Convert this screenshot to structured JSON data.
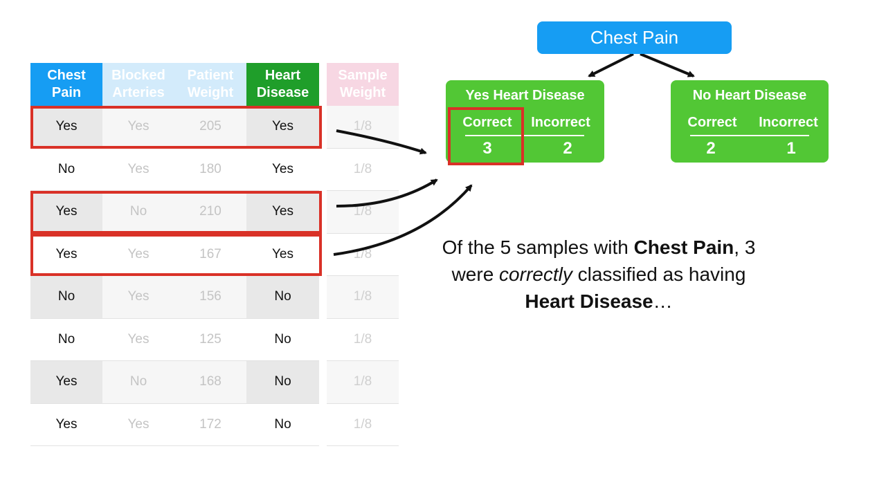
{
  "table": {
    "headers": [
      {
        "line1": "Chest",
        "line2": "Pain",
        "color": "#169df3"
      },
      {
        "line1": "Blocked",
        "line2": "Arteries",
        "color": "#d3ebfb"
      },
      {
        "line1": "Patient",
        "line2": "Weight",
        "color": "#d3ebfb"
      },
      {
        "line1": "Heart",
        "line2": "Disease",
        "color": "#1f9e2a"
      }
    ],
    "sample_weight_header": {
      "line1": "Sample",
      "line2": "Weight",
      "color": "#f7d7e3"
    },
    "rows": [
      {
        "chest_pain": "Yes",
        "blocked_arteries": "Yes",
        "patient_weight": "205",
        "heart_disease": "Yes",
        "sample_weight": "1/8"
      },
      {
        "chest_pain": "No",
        "blocked_arteries": "Yes",
        "patient_weight": "180",
        "heart_disease": "Yes",
        "sample_weight": "1/8"
      },
      {
        "chest_pain": "Yes",
        "blocked_arteries": "No",
        "patient_weight": "210",
        "heart_disease": "Yes",
        "sample_weight": "1/8"
      },
      {
        "chest_pain": "Yes",
        "blocked_arteries": "Yes",
        "patient_weight": "167",
        "heart_disease": "Yes",
        "sample_weight": "1/8"
      },
      {
        "chest_pain": "No",
        "blocked_arteries": "Yes",
        "patient_weight": "156",
        "heart_disease": "No",
        "sample_weight": "1/8"
      },
      {
        "chest_pain": "No",
        "blocked_arteries": "Yes",
        "patient_weight": "125",
        "heart_disease": "No",
        "sample_weight": "1/8"
      },
      {
        "chest_pain": "Yes",
        "blocked_arteries": "No",
        "patient_weight": "168",
        "heart_disease": "No",
        "sample_weight": "1/8"
      },
      {
        "chest_pain": "Yes",
        "blocked_arteries": "Yes",
        "patient_weight": "172",
        "heart_disease": "No",
        "sample_weight": "1/8"
      }
    ],
    "highlighted_rows": [
      0,
      2,
      3
    ]
  },
  "tree": {
    "root": {
      "label": "Chest Pain",
      "color": "#169df3"
    },
    "leaf_color": "#52c735",
    "highlight_color": "#d93127",
    "leaves": [
      {
        "title": "Yes Heart Disease",
        "correct_label": "Correct",
        "incorrect_label": "Incorrect",
        "correct": "3",
        "incorrect": "2"
      },
      {
        "title": "No Heart Disease",
        "correct_label": "Correct",
        "incorrect_label": "Incorrect",
        "correct": "2",
        "incorrect": "1"
      }
    ]
  },
  "caption": {
    "p1": "Of the 5 samples with ",
    "b1": "Chest Pain",
    "p2": ", 3 were ",
    "i1": "correctly",
    "p3": " classified as having ",
    "b2": "Heart Disease",
    "p4": "…"
  }
}
